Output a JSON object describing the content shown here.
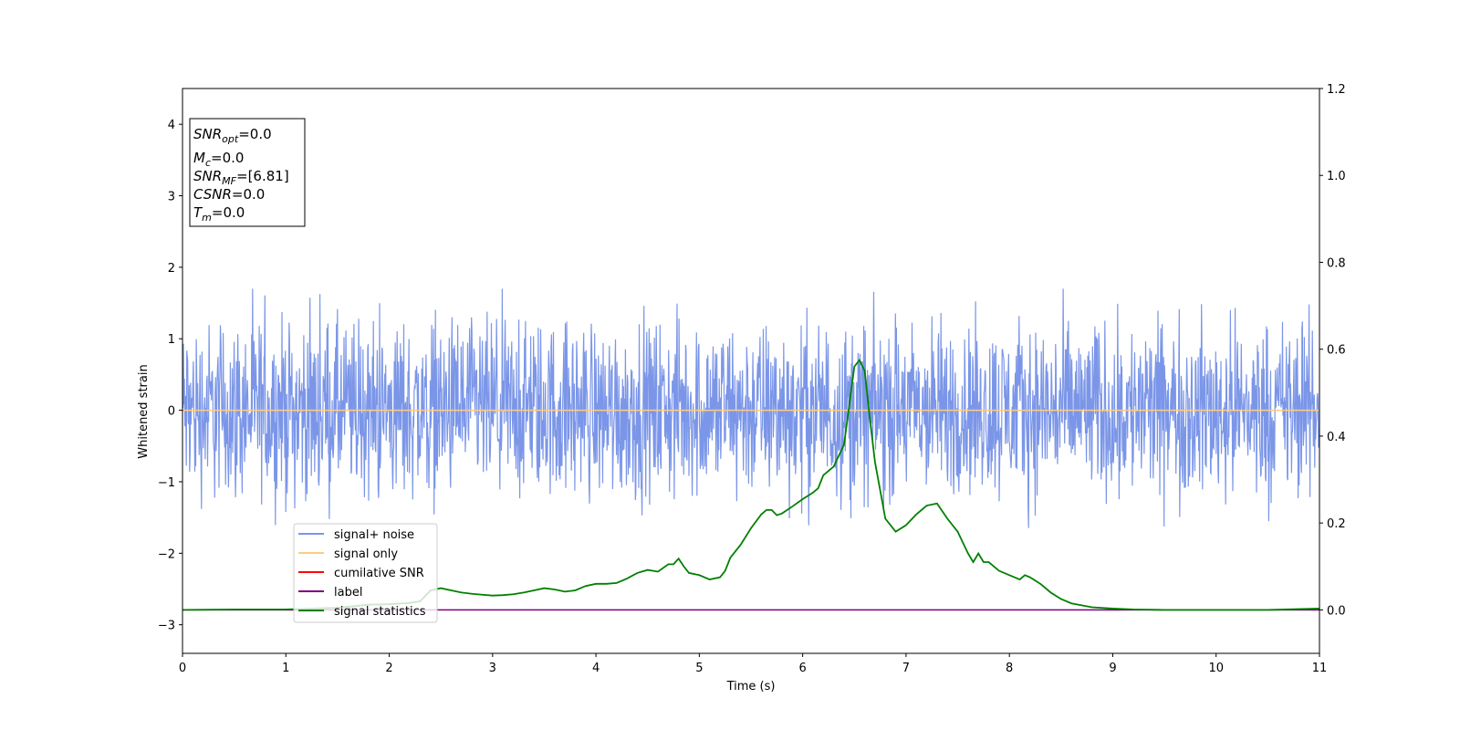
{
  "chart_data": {
    "type": "line",
    "xlabel": "Time (s)",
    "ylabel": "Whitened strain",
    "xlim": [
      0,
      11
    ],
    "ylim": [
      -3.4,
      4.5
    ],
    "y2lim": [
      -0.1,
      1.2
    ],
    "x_ticks": [
      "0",
      "1",
      "2",
      "3",
      "4",
      "5",
      "6",
      "7",
      "8",
      "9",
      "10",
      "11"
    ],
    "y_ticks": [
      "−3",
      "−2",
      "−1",
      "0",
      "1",
      "2",
      "3",
      "4"
    ],
    "y2_ticks": [
      "0.0",
      "0.2",
      "0.4",
      "0.6",
      "0.8",
      "1.0",
      "1.2"
    ],
    "legend_position": "lower-left",
    "grid": false,
    "colors": {
      "signal_noise": "#7b96e8",
      "signal_only": "#ffcc80",
      "cumulative_snr": "#ff0000",
      "label": "#800080",
      "signal_statistics": "#008000"
    },
    "info_box": {
      "lines": [
        {
          "base": "SNR",
          "sub": "opt",
          "value": "=0.0"
        },
        {
          "base": "M",
          "sub": "c",
          "value": "=0.0"
        },
        {
          "base": "SNR",
          "sub": "MF",
          "value": "=[6.81]"
        },
        {
          "base": "CSNR",
          "sub": "",
          "value": "=0.0"
        },
        {
          "base": "T",
          "sub": "m",
          "value": "=0.0"
        }
      ]
    },
    "series": [
      {
        "name": "signal+ noise",
        "axis": "left",
        "description_style": "dense noise",
        "envelope": {
          "x_range": [
            0,
            11
          ],
          "typical_amplitude": 0.8,
          "max": 1.7,
          "min": -1.75
        }
      },
      {
        "name": "signal only",
        "axis": "left",
        "x": [
          0,
          11
        ],
        "y": [
          0,
          0
        ]
      },
      {
        "name": "cumilative SNR",
        "axis": "left",
        "x": [],
        "y": []
      },
      {
        "name": "label",
        "axis": "right",
        "x": [
          0,
          11
        ],
        "y": [
          0,
          0
        ]
      },
      {
        "name": "signal statistics",
        "axis": "right",
        "x": [
          0,
          0.5,
          1.0,
          1.5,
          1.8,
          2.0,
          2.2,
          2.3,
          2.4,
          2.5,
          2.6,
          2.7,
          2.8,
          2.9,
          3.0,
          3.1,
          3.2,
          3.3,
          3.4,
          3.5,
          3.6,
          3.7,
          3.8,
          3.9,
          4.0,
          4.1,
          4.2,
          4.3,
          4.4,
          4.5,
          4.6,
          4.7,
          4.75,
          4.8,
          4.85,
          4.9,
          5.0,
          5.1,
          5.2,
          5.25,
          5.3,
          5.4,
          5.5,
          5.6,
          5.65,
          5.7,
          5.75,
          5.8,
          5.9,
          6.0,
          6.1,
          6.15,
          6.2,
          6.3,
          6.4,
          6.5,
          6.55,
          6.6,
          6.65,
          6.7,
          6.8,
          6.9,
          7.0,
          7.1,
          7.2,
          7.3,
          7.4,
          7.5,
          7.6,
          7.65,
          7.7,
          7.75,
          7.8,
          7.9,
          8.0,
          8.1,
          8.15,
          8.2,
          8.3,
          8.4,
          8.5,
          8.6,
          8.8,
          9.0,
          9.2,
          9.5,
          10.0,
          10.5,
          11.0
        ],
        "y": [
          0.0,
          0.001,
          0.001,
          0.005,
          0.012,
          0.013,
          0.016,
          0.02,
          0.045,
          0.05,
          0.045,
          0.04,
          0.037,
          0.035,
          0.033,
          0.034,
          0.036,
          0.04,
          0.045,
          0.05,
          0.047,
          0.042,
          0.045,
          0.055,
          0.06,
          0.06,
          0.062,
          0.072,
          0.085,
          0.092,
          0.088,
          0.105,
          0.105,
          0.118,
          0.1,
          0.085,
          0.08,
          0.07,
          0.075,
          0.09,
          0.12,
          0.15,
          0.188,
          0.22,
          0.23,
          0.23,
          0.218,
          0.222,
          0.238,
          0.255,
          0.27,
          0.28,
          0.31,
          0.33,
          0.38,
          0.56,
          0.575,
          0.55,
          0.44,
          0.34,
          0.21,
          0.18,
          0.195,
          0.22,
          0.24,
          0.245,
          0.21,
          0.18,
          0.13,
          0.11,
          0.13,
          0.11,
          0.11,
          0.09,
          0.08,
          0.07,
          0.08,
          0.075,
          0.06,
          0.04,
          0.025,
          0.015,
          0.006,
          0.003,
          0.001,
          0.0,
          0.0,
          0.0,
          0.003
        ]
      }
    ]
  }
}
